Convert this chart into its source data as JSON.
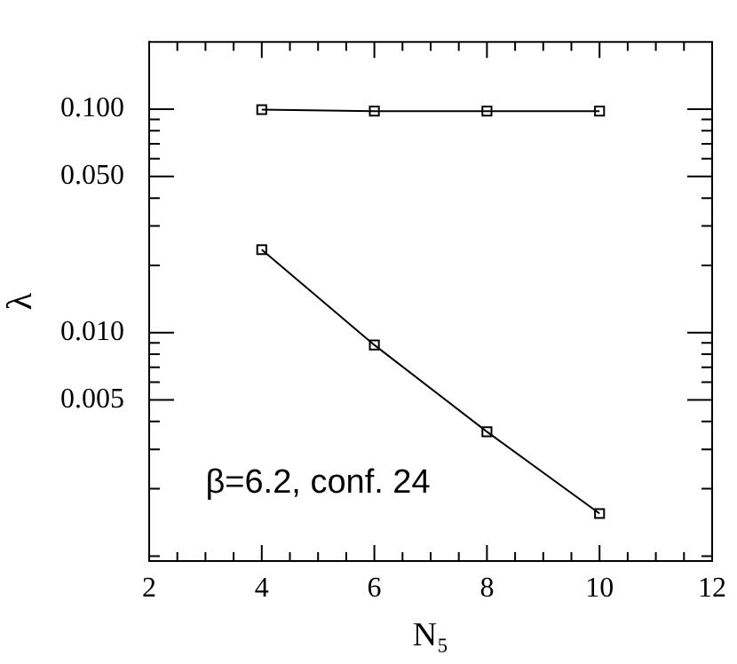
{
  "chart_data": {
    "type": "line",
    "xlabel": "N₅",
    "ylabel": "λ",
    "log": "y",
    "grid": false,
    "legend": false,
    "marker": "square",
    "line_style": "solid",
    "x": [
      4,
      6,
      8,
      10
    ],
    "series": [
      {
        "color": "#000000",
        "values": [
          0.0995,
          0.098,
          0.098,
          0.098
        ]
      },
      {
        "color": "#000000",
        "values": [
          0.0235,
          0.0088,
          0.0036,
          0.00155
        ]
      }
    ],
    "xlim": [
      2,
      12
    ],
    "xticks": [
      2,
      {
        "value": 2.5,
        "label": null
      },
      {
        "value": 3,
        "label": null
      },
      {
        "value": 3.5,
        "label": null
      },
      4,
      {
        "value": 4.5,
        "label": null
      },
      {
        "value": 5,
        "label": null
      },
      {
        "value": 5.5,
        "label": null
      },
      6,
      {
        "value": 6.5,
        "label": null
      },
      {
        "value": 7,
        "label": null
      },
      {
        "value": 7.5,
        "label": null
      },
      8,
      {
        "value": 8.5,
        "label": null
      },
      {
        "value": 9,
        "label": null
      },
      {
        "value": 9.5,
        "label": null
      },
      10,
      {
        "value": 10.5,
        "label": null
      },
      {
        "value": 11,
        "label": null
      },
      {
        "value": 11.5,
        "label": null
      },
      12
    ],
    "ylim": [
      0.00095,
      0.2
    ],
    "yticks": [
      {
        "value": 0.001,
        "label": null
      },
      {
        "value": 0.002,
        "label": null
      },
      {
        "value": 0.003,
        "label": null
      },
      {
        "value": 0.004,
        "label": null
      },
      {
        "value": 0.005,
        "label": "0.005"
      },
      {
        "value": 0.006,
        "label": null
      },
      {
        "value": 0.007,
        "label": null
      },
      {
        "value": 0.008,
        "label": null
      },
      {
        "value": 0.009,
        "label": null
      },
      {
        "value": 0.01,
        "label": "0.010"
      },
      {
        "value": 0.02,
        "label": null
      },
      {
        "value": 0.03,
        "label": null
      },
      {
        "value": 0.04,
        "label": null
      },
      {
        "value": 0.05,
        "label": "0.050"
      },
      {
        "value": 0.06,
        "label": null
      },
      {
        "value": 0.07,
        "label": null
      },
      {
        "value": 0.08,
        "label": null
      },
      {
        "value": 0.09,
        "label": null
      },
      {
        "value": 0.1,
        "label": "0.100"
      }
    ],
    "annotations": [
      "β=6.2, conf. 24"
    ]
  }
}
